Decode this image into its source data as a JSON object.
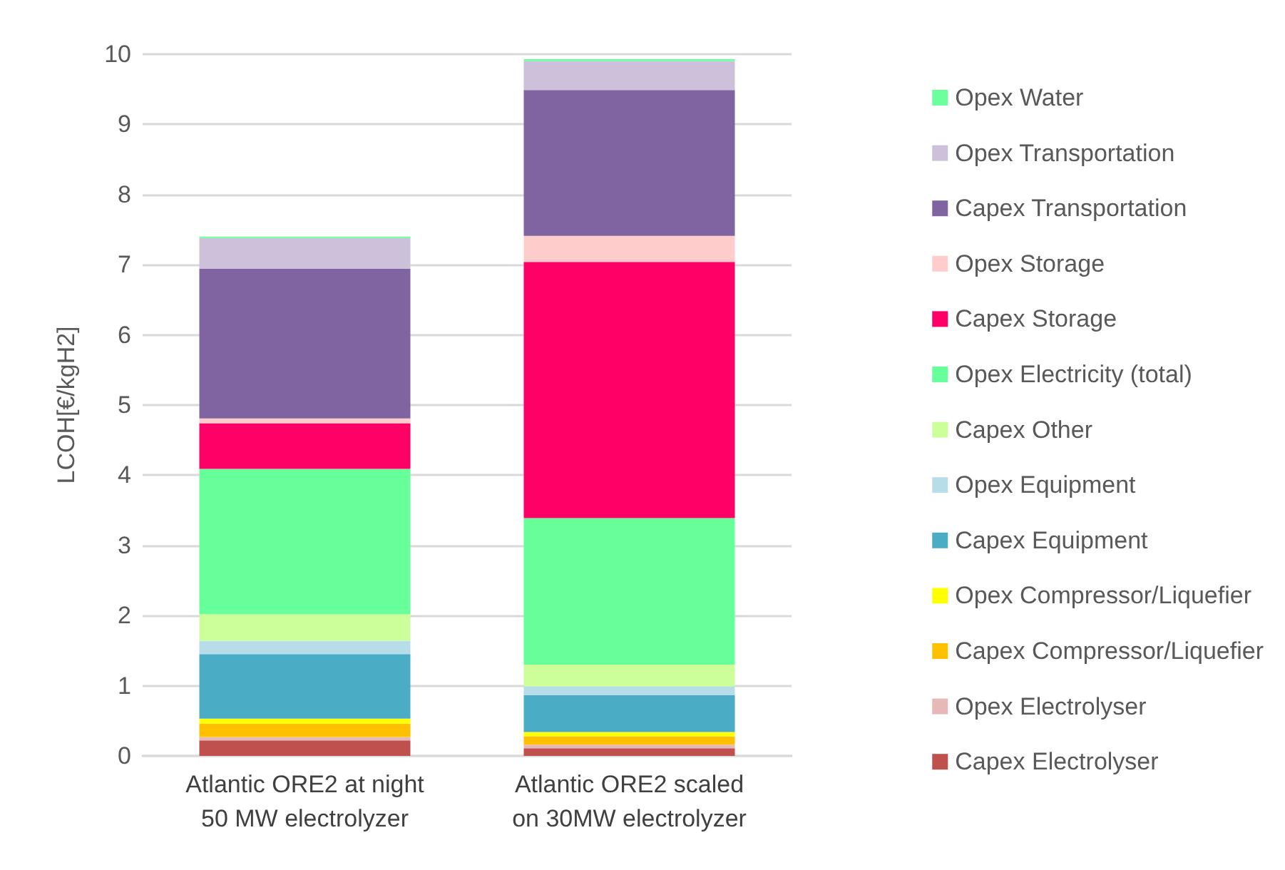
{
  "chart_data": {
    "type": "bar",
    "stacked": true,
    "ylabel": "LCOH[€/kgH2]",
    "categories": [
      "Atlantic ORE2 at night\n50 MW electrolyzer",
      "Atlantic ORE2 scaled\non 30MW electrolyzer"
    ],
    "ylim": [
      0,
      10
    ],
    "yticks": [
      0,
      1,
      2,
      3,
      4,
      5,
      6,
      7,
      8,
      9,
      10
    ],
    "grid": "y",
    "legend": "right",
    "series": [
      {
        "name": "Capex Electrolyser",
        "color": "#c0504d",
        "values": [
          0.22,
          0.11
        ]
      },
      {
        "name": "Opex Electrolyser",
        "color": "#e6b9b8",
        "values": [
          0.05,
          0.05
        ]
      },
      {
        "name": "Capex Compressor/Liquefier",
        "color": "#ffc000",
        "values": [
          0.19,
          0.12
        ]
      },
      {
        "name": "Opex Compressor/Liquefier",
        "color": "#ffff00",
        "values": [
          0.07,
          0.06
        ]
      },
      {
        "name": "Capex Equipment",
        "color": "#4bacc6",
        "values": [
          0.92,
          0.53
        ]
      },
      {
        "name": "Opex Equipment",
        "color": "#b7dee8",
        "values": [
          0.19,
          0.12
        ]
      },
      {
        "name": "Capex Other",
        "color": "#ccff99",
        "values": [
          0.38,
          0.31
        ]
      },
      {
        "name": "Opex Electricity (total)",
        "color": "#66ff99",
        "values": [
          2.07,
          2.09
        ]
      },
      {
        "name": "Capex Storage",
        "color": "#ff0066",
        "values": [
          0.65,
          3.65
        ]
      },
      {
        "name": "Opex Storage",
        "color": "#ffcccc",
        "values": [
          0.07,
          0.37
        ]
      },
      {
        "name": "Capex Transportation",
        "color": "#8064a2",
        "values": [
          2.13,
          2.08
        ]
      },
      {
        "name": "Opex Transportation",
        "color": "#ccc0da",
        "values": [
          0.44,
          0.41
        ]
      },
      {
        "name": "Opex Water",
        "color": "#6bff9e",
        "values": [
          0.02,
          0.03
        ]
      }
    ]
  }
}
